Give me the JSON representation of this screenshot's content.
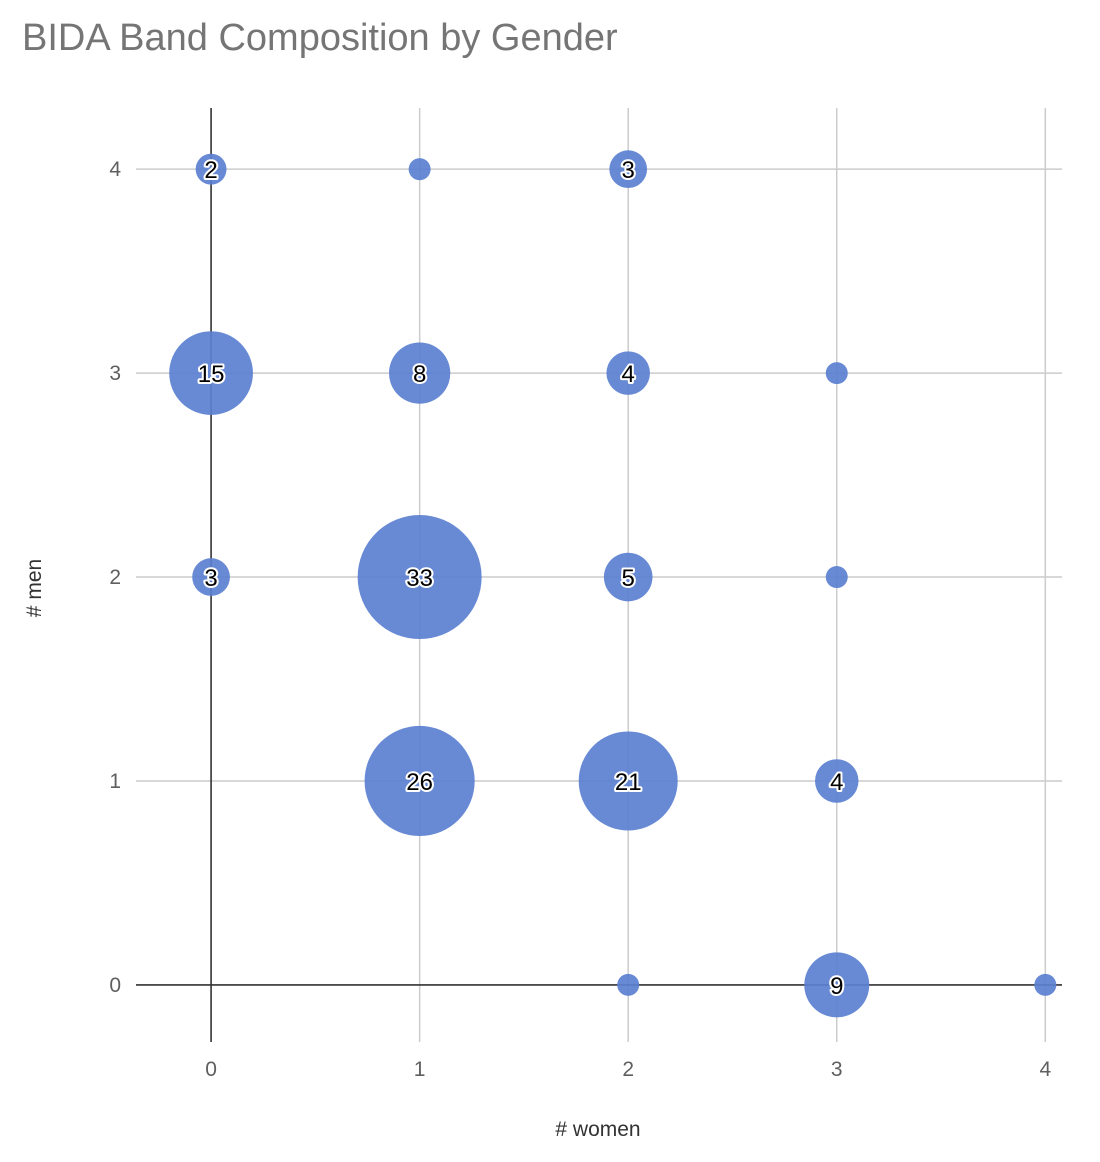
{
  "chart_data": {
    "type": "scatter",
    "subtype": "bubble",
    "title": "BIDA Band Composition by Gender",
    "xlabel": "# women",
    "ylabel": "# men",
    "xlim": [
      -0.36,
      4.08
    ],
    "ylim": [
      -0.28,
      4.3
    ],
    "xticks": [
      "0",
      "1",
      "2",
      "3",
      "4"
    ],
    "yticks": [
      "0",
      "1",
      "2",
      "3",
      "4"
    ],
    "grid": true,
    "legend": "none",
    "color": "#5b80d0",
    "points": [
      {
        "x": 0,
        "y": 4,
        "size": 2,
        "label": "2"
      },
      {
        "x": 1,
        "y": 4,
        "size": 1,
        "label": ""
      },
      {
        "x": 2,
        "y": 4,
        "size": 3,
        "label": "3"
      },
      {
        "x": 0,
        "y": 3,
        "size": 15,
        "label": "15"
      },
      {
        "x": 1,
        "y": 3,
        "size": 8,
        "label": "8"
      },
      {
        "x": 2,
        "y": 3,
        "size": 4,
        "label": "4"
      },
      {
        "x": 3,
        "y": 3,
        "size": 1,
        "label": ""
      },
      {
        "x": 0,
        "y": 2,
        "size": 3,
        "label": "3"
      },
      {
        "x": 1,
        "y": 2,
        "size": 33,
        "label": "33"
      },
      {
        "x": 2,
        "y": 2,
        "size": 5,
        "label": "5"
      },
      {
        "x": 3,
        "y": 2,
        "size": 1,
        "label": ""
      },
      {
        "x": 1,
        "y": 1,
        "size": 26,
        "label": "26"
      },
      {
        "x": 2,
        "y": 1,
        "size": 21,
        "label": "21"
      },
      {
        "x": 3,
        "y": 1,
        "size": 4,
        "label": "4"
      },
      {
        "x": 2,
        "y": 0,
        "size": 1,
        "label": ""
      },
      {
        "x": 3,
        "y": 0,
        "size": 9,
        "label": "9"
      },
      {
        "x": 4,
        "y": 0,
        "size": 1,
        "label": ""
      }
    ]
  }
}
